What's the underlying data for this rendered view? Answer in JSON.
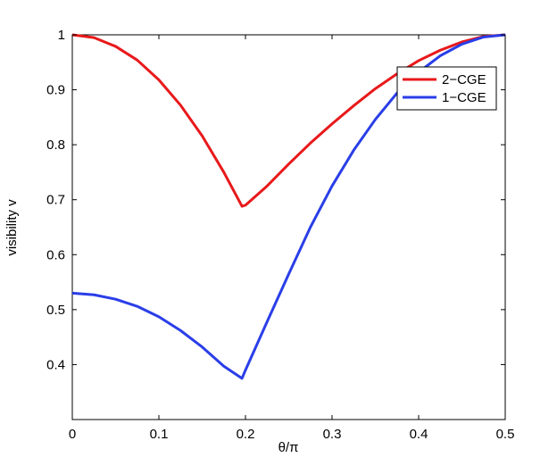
{
  "chart_data": {
    "type": "line",
    "title": "",
    "xlabel": "θ/π",
    "ylabel": "visibility v",
    "xlim": [
      0,
      0.5
    ],
    "ylim": [
      0.3,
      1
    ],
    "xticks": [
      0,
      0.1,
      0.2,
      0.3,
      0.4,
      0.5
    ],
    "xtick_labels": [
      "0",
      "0.1",
      "0.2",
      "0.3",
      "0.4",
      "0.5"
    ],
    "yticks": [
      0.4,
      0.5,
      0.6,
      0.7,
      0.8,
      0.9,
      1.0
    ],
    "ytick_labels": [
      "0.4",
      "0.5",
      "0.6",
      "0.7",
      "0.8",
      "0.9",
      "1"
    ],
    "grid": false,
    "legend_position": "top-right",
    "series": [
      {
        "name": "2−CGE",
        "color": "#e8191b",
        "x": [
          0,
          0.025,
          0.05,
          0.075,
          0.1,
          0.125,
          0.15,
          0.175,
          0.196,
          0.2,
          0.225,
          0.25,
          0.275,
          0.3,
          0.325,
          0.35,
          0.375,
          0.4,
          0.425,
          0.45,
          0.475,
          0.5
        ],
        "y": [
          1.0,
          0.995,
          0.979,
          0.954,
          0.918,
          0.872,
          0.816,
          0.75,
          0.688,
          0.69,
          0.725,
          0.765,
          0.803,
          0.838,
          0.871,
          0.902,
          0.929,
          0.953,
          0.972,
          0.987,
          0.997,
          1.0
        ]
      },
      {
        "name": "1−CGE",
        "color": "#2a3ee8",
        "x": [
          0,
          0.025,
          0.05,
          0.075,
          0.1,
          0.125,
          0.15,
          0.175,
          0.196,
          0.2,
          0.225,
          0.25,
          0.275,
          0.3,
          0.325,
          0.35,
          0.375,
          0.4,
          0.425,
          0.45,
          0.475,
          0.5
        ],
        "y": [
          0.53,
          0.527,
          0.519,
          0.506,
          0.487,
          0.462,
          0.432,
          0.397,
          0.375,
          0.39,
          0.478,
          0.565,
          0.65,
          0.725,
          0.79,
          0.846,
          0.894,
          0.932,
          0.962,
          0.983,
          0.996,
          1.0
        ]
      }
    ]
  }
}
